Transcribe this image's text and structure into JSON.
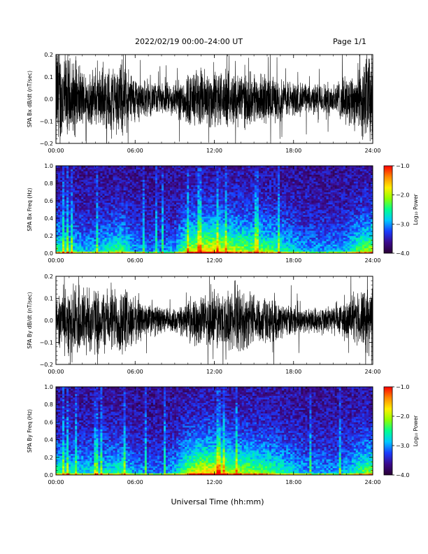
{
  "header": {
    "title": "2022/02/19  00:00–24:00 UT",
    "page": "Page 1/1"
  },
  "xlabel": "Universal Time (hh:mm)",
  "colors": {
    "trace": "#000000",
    "colorbar": [
      "#2a0033",
      "#3b0a8c",
      "#1a3cff",
      "#00c8ff",
      "#00ff90",
      "#90ff00",
      "#ffee00",
      "#ff8800",
      "#ff0000"
    ]
  },
  "chart_data": [
    {
      "type": "line",
      "ylabel": "SPA Bx dB/dt (nT/sec)",
      "xlim": [
        0,
        24
      ],
      "ylim": [
        -0.2,
        0.2
      ],
      "xticks": [
        "00:00",
        "06:00",
        "12:00",
        "18:00",
        "24:00"
      ],
      "yticks": [
        "0.2",
        "0.1",
        "0.0",
        "−0.1",
        "−0.2"
      ],
      "ytick_values": [
        0.2,
        0.1,
        0.0,
        -0.1,
        -0.2
      ],
      "envelope": {
        "hours": [
          0,
          1,
          2,
          3,
          4,
          5,
          6,
          7,
          8,
          9,
          10,
          11,
          12,
          13,
          14,
          15,
          16,
          17,
          18,
          19,
          20,
          21,
          22,
          23,
          24
        ],
        "amplitude": [
          0.3,
          0.22,
          0.15,
          0.14,
          0.17,
          0.2,
          0.12,
          0.09,
          0.08,
          0.09,
          0.14,
          0.16,
          0.15,
          0.14,
          0.15,
          0.13,
          0.12,
          0.11,
          0.09,
          0.08,
          0.08,
          0.09,
          0.12,
          0.18,
          0.28
        ]
      }
    },
    {
      "type": "heatmap",
      "ylabel": "SPA Bx Freq (Hz)",
      "xlim": [
        0,
        24
      ],
      "ylim": [
        0,
        1.0
      ],
      "xticks": [
        "00:00",
        "06:00",
        "12:00",
        "18:00",
        "24:00"
      ],
      "yticks": [
        "1.0",
        "0.8",
        "0.6",
        "0.4",
        "0.2",
        "0.0"
      ],
      "ytick_values": [
        1.0,
        0.8,
        0.6,
        0.4,
        0.2,
        0.0
      ],
      "colorbar": {
        "label": "Log₁₀ Power",
        "range": [
          -4.0,
          -1.0
        ],
        "ticks": [
          "−1.0",
          "−2.0",
          "−3.0",
          "−4.0"
        ],
        "tick_values": [
          -1.0,
          -2.0,
          -3.0,
          -4.0
        ]
      },
      "activity": {
        "hours": [
          0,
          1,
          2,
          3,
          4,
          5,
          6,
          7,
          8,
          9,
          10,
          11,
          12,
          13,
          14,
          15,
          16,
          17,
          18,
          19,
          20,
          21,
          22,
          23,
          24
        ],
        "level": [
          0.55,
          0.45,
          0.35,
          0.35,
          0.45,
          0.55,
          0.3,
          0.25,
          0.25,
          0.3,
          0.7,
          0.85,
          0.85,
          0.75,
          0.7,
          0.65,
          0.6,
          0.5,
          0.4,
          0.3,
          0.3,
          0.3,
          0.35,
          0.6,
          0.7
        ]
      }
    },
    {
      "type": "line",
      "ylabel": "SPA By dB/dt (nT/sec)",
      "xlim": [
        0,
        24
      ],
      "ylim": [
        -0.2,
        0.2
      ],
      "xticks": [
        "00:00",
        "06:00",
        "12:00",
        "18:00",
        "24:00"
      ],
      "yticks": [
        "0.2",
        "0.1",
        "0.0",
        "−0.1",
        "−0.2"
      ],
      "ytick_values": [
        0.2,
        0.1,
        0.0,
        -0.1,
        -0.2
      ],
      "envelope": {
        "hours": [
          0,
          1,
          2,
          3,
          4,
          5,
          6,
          7,
          8,
          9,
          10,
          11,
          12,
          13,
          14,
          15,
          16,
          17,
          18,
          19,
          20,
          21,
          22,
          23,
          24
        ],
        "amplitude": [
          0.12,
          0.18,
          0.2,
          0.17,
          0.16,
          0.18,
          0.12,
          0.09,
          0.07,
          0.06,
          0.09,
          0.13,
          0.16,
          0.15,
          0.16,
          0.14,
          0.12,
          0.09,
          0.08,
          0.07,
          0.07,
          0.08,
          0.1,
          0.14,
          0.2
        ]
      }
    },
    {
      "type": "heatmap",
      "ylabel": "SPA By Freq (Hz)",
      "xlim": [
        0,
        24
      ],
      "ylim": [
        0,
        1.0
      ],
      "xticks": [
        "00:00",
        "06:00",
        "12:00",
        "18:00",
        "24:00"
      ],
      "yticks": [
        "1.0",
        "0.8",
        "0.6",
        "0.4",
        "0.2",
        "0.0"
      ],
      "ytick_values": [
        1.0,
        0.8,
        0.6,
        0.4,
        0.2,
        0.0
      ],
      "colorbar": {
        "label": "Log₁₀ Power",
        "range": [
          -4.0,
          -1.0
        ],
        "ticks": [
          "−1.0",
          "−2.0",
          "−3.0",
          "−4.0"
        ],
        "tick_values": [
          -1.0,
          -2.0,
          -3.0,
          -4.0
        ]
      },
      "activity": {
        "hours": [
          0,
          1,
          2,
          3,
          4,
          5,
          6,
          7,
          8,
          9,
          10,
          11,
          12,
          13,
          14,
          15,
          16,
          17,
          18,
          19,
          20,
          21,
          22,
          23,
          24
        ],
        "level": [
          0.5,
          0.45,
          0.4,
          0.4,
          0.45,
          0.5,
          0.3,
          0.25,
          0.25,
          0.35,
          0.7,
          0.85,
          0.85,
          0.75,
          0.7,
          0.65,
          0.6,
          0.5,
          0.4,
          0.3,
          0.3,
          0.3,
          0.35,
          0.55,
          0.65
        ]
      }
    }
  ]
}
